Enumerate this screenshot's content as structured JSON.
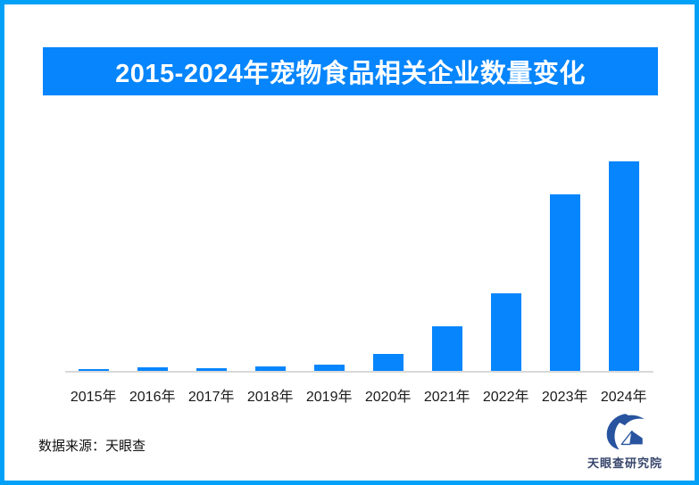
{
  "page": {
    "frame_color": "#02a0f7",
    "background_color": "#ffffff"
  },
  "banner": {
    "title": "2015-2024年宠物食品相关企业数量变化",
    "bg_color": "#0685fc",
    "text_color": "#ffffff"
  },
  "chart_data": {
    "type": "bar",
    "title": "2015-2024年宠物食品相关企业数量变化",
    "categories": [
      "2015年",
      "2016年",
      "2017年",
      "2018年",
      "2019年",
      "2020年",
      "2021年",
      "2022年",
      "2023年",
      "2024年"
    ],
    "values_relative_pct_of_max": [
      1.3,
      2.0,
      1.9,
      2.7,
      3.5,
      8.5,
      21.6,
      37.3,
      84.3,
      100
    ],
    "value_labels_shown": false,
    "y_axis_shown": false,
    "gridlines": false,
    "legend": "none",
    "bar_color": "#0685fc",
    "axis_line_color": "#d9d9d9",
    "xlabel": "",
    "ylabel": ""
  },
  "footer": {
    "source_text": "数据来源：天眼查",
    "logo_text": "天眼查研究院",
    "logo_color": "#27539f",
    "logo_text_color": "#36456b"
  }
}
